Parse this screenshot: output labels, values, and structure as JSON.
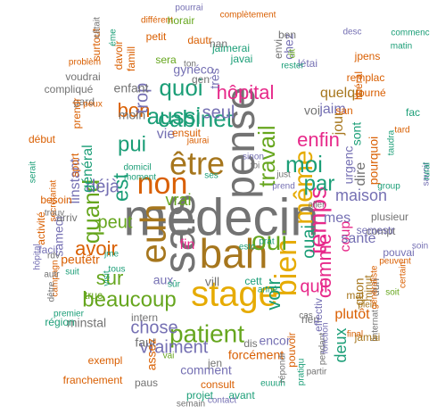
{
  "palette": {
    "grey": "#737373",
    "orange": "#d95f02",
    "olive": "#66a61e",
    "teal": "#1b9e77",
    "purple": "#7570b3",
    "pink": "#e7298a",
    "mustard": "#e6ab02",
    "brown": "#a6761d"
  },
  "words": [
    {
      "text": "médecin",
      "c": "grey"
    },
    {
      "text": "sais",
      "c": "grey"
    },
    {
      "text": "pense",
      "c": "grey"
    },
    {
      "text": "bah",
      "c": "brown"
    },
    {
      "text": "euh",
      "c": "brown"
    },
    {
      "text": "être",
      "c": "brown"
    },
    {
      "text": "non",
      "c": "orange"
    },
    {
      "text": "stage",
      "c": "mustard"
    },
    {
      "text": "temps",
      "c": "pink"
    },
    {
      "text": "bien",
      "c": "mustard"
    },
    {
      "text": "même",
      "c": "mustard"
    },
    {
      "text": "cabinet",
      "c": "teal"
    },
    {
      "text": "patient",
      "c": "olive"
    },
    {
      "text": "travail",
      "c": "olive"
    },
    {
      "text": "aussi",
      "c": "teal"
    },
    {
      "text": "quand",
      "c": "olive"
    },
    {
      "text": "moi",
      "c": "teal"
    },
    {
      "text": "par",
      "c": "teal"
    },
    {
      "text": "quoi",
      "c": "teal"
    },
    {
      "text": "pui",
      "c": "teal"
    },
    {
      "text": "est",
      "c": "teal"
    },
    {
      "text": "oui",
      "c": "olive"
    },
    {
      "text": "beaucoup",
      "c": "olive"
    },
    {
      "text": "avoir",
      "c": "orange"
    },
    {
      "text": "peut",
      "c": "olive"
    },
    {
      "text": "sur",
      "c": "olive"
    },
    {
      "text": "voir",
      "c": "teal"
    },
    {
      "text": "vraiment",
      "c": "purple"
    },
    {
      "text": "chose",
      "c": "purple"
    },
    {
      "text": "hôpital",
      "c": "pink"
    },
    {
      "text": "enfin",
      "c": "pink"
    },
    {
      "text": "comme",
      "c": "pink"
    },
    {
      "text": "quil",
      "c": "pink"
    },
    {
      "text": "plutôt",
      "c": "orange"
    },
    {
      "text": "bon",
      "c": "orange"
    },
    {
      "text": "trop",
      "c": "purple"
    },
    {
      "text": "seul",
      "c": "purple"
    },
    {
      "text": "déjà",
      "c": "purple"
    },
    {
      "text": "vrai",
      "c": "olive"
    },
    {
      "text": "mes",
      "c": "purple"
    },
    {
      "text": "maison",
      "c": "purple"
    },
    {
      "text": "fin",
      "c": "pink"
    },
    {
      "text": "ouai",
      "c": "teal"
    },
    {
      "text": "coup",
      "c": "pink"
    },
    {
      "text": "deux",
      "c": "teal"
    },
    {
      "text": "santé",
      "c": "purple"
    },
    {
      "text": "dire",
      "c": "grey"
    },
    {
      "text": "jour",
      "c": "brown"
    },
    {
      "text": "quelqu",
      "c": "brown"
    },
    {
      "text": "jaim",
      "c": "purple"
    },
    {
      "text": "sont",
      "c": "teal"
    },
    {
      "text": "urgenc",
      "c": "purple"
    },
    {
      "text": "pourquoi",
      "c": "orange"
    },
    {
      "text": "vie",
      "c": "purple"
    },
    {
      "text": "moin",
      "c": "grey"
    },
    {
      "text": "enfant",
      "c": "grey"
    },
    {
      "text": "gynéco",
      "c": "purple"
    },
    {
      "text": "très",
      "c": "purple"
    },
    {
      "text": "voi",
      "c": "grey"
    },
    {
      "text": "remplac",
      "c": "orange"
    },
    {
      "text": "journé",
      "c": "orange"
    },
    {
      "text": "général",
      "c": "teal"
    },
    {
      "text": "linstant",
      "c": "purple"
    },
    {
      "text": "samedi",
      "c": "purple"
    },
    {
      "text": "peutêtr",
      "c": "orange"
    },
    {
      "text": "minstal",
      "c": "grey"
    },
    {
      "text": "faut",
      "c": "grey"
    },
    {
      "text": "assez",
      "c": "orange"
    },
    {
      "text": "comment",
      "c": "purple"
    },
    {
      "text": "encor",
      "c": "purple"
    },
    {
      "text": "forcément",
      "c": "orange"
    },
    {
      "text": "consult",
      "c": "orange"
    },
    {
      "text": "projet",
      "c": "teal"
    },
    {
      "text": "avant",
      "c": "teal"
    },
    {
      "text": "exempl",
      "c": "orange"
    },
    {
      "text": "truc",
      "c": "olive"
    },
    {
      "text": "intern",
      "c": "grey"
    },
    {
      "text": "aux",
      "c": "purple"
    },
    {
      "text": "vill",
      "c": "grey"
    },
    {
      "text": "dis",
      "c": "grey"
    },
    {
      "text": "jen",
      "c": "grey"
    },
    {
      "text": "pouvoir",
      "c": "orange"
    },
    {
      "text": "quon",
      "c": "brown"
    },
    {
      "text": "mal",
      "c": "brown"
    },
    {
      "text": "minut",
      "c": "brown"
    },
    {
      "text": "compt",
      "c": "grey"
    },
    {
      "text": "semestr",
      "c": "purple"
    },
    {
      "text": "plusieur",
      "c": "grey"
    },
    {
      "text": "aller",
      "c": "grey"
    },
    {
      "text": "dun",
      "c": "grey"
    },
    {
      "text": "rien",
      "c": "grey"
    },
    {
      "text": "san",
      "c": "orange"
    },
    {
      "text": "sera",
      "c": "olive"
    },
    {
      "text": "jaimerai",
      "c": "teal"
    },
    {
      "text": "javai",
      "c": "teal"
    },
    {
      "text": "nan",
      "c": "grey"
    },
    {
      "text": "chez",
      "c": "purple"
    },
    {
      "text": "létai",
      "c": "purple"
    },
    {
      "text": "jpens",
      "c": "orange"
    },
    {
      "text": "libéral",
      "c": "orange"
    },
    {
      "text": "matin",
      "c": "teal"
    },
    {
      "text": "commenc",
      "c": "teal"
    },
    {
      "text": "desc",
      "c": "purple"
    },
    {
      "text": "complètement",
      "c": "orange"
    },
    {
      "text": "pourrai",
      "c": "purple"
    },
    {
      "text": "différent",
      "c": "orange"
    },
    {
      "text": "horair",
      "c": "olive"
    },
    {
      "text": "petit",
      "c": "orange"
    },
    {
      "text": "famill",
      "c": "orange"
    },
    {
      "text": "dautr",
      "c": "orange"
    },
    {
      "text": "davoir",
      "c": "orange"
    },
    {
      "text": "surtout",
      "c": "orange"
    },
    {
      "text": "problèm",
      "c": "orange"
    },
    {
      "text": "voudrai",
      "c": "grey"
    },
    {
      "text": "compliqué",
      "c": "grey"
    },
    {
      "text": "gard",
      "c": "grey"
    },
    {
      "text": "peux",
      "c": "orange"
    },
    {
      "text": "prendr",
      "c": "orange"
    },
    {
      "text": "début",
      "c": "orange"
    },
    {
      "text": "serait",
      "c": "teal"
    },
    {
      "text": "secrétariat",
      "c": "orange"
    },
    {
      "text": "sport",
      "c": "orange"
    },
    {
      "text": "besoin",
      "c": "orange"
    },
    {
      "text": "arriv",
      "c": "grey"
    },
    {
      "text": "trouv",
      "c": "grey"
    },
    {
      "text": "activité",
      "c": "orange"
    },
    {
      "text": "facil",
      "c": "purple"
    },
    {
      "text": "hôpital",
      "c": "purple"
    },
    {
      "text": "campagn",
      "c": "orange"
    },
    {
      "text": "région",
      "c": "teal"
    },
    {
      "text": "premier",
      "c": "teal"
    },
    {
      "text": "franchement",
      "c": "orange"
    },
    {
      "text": "paus",
      "c": "grey"
    },
    {
      "text": "semain",
      "c": "grey"
    },
    {
      "text": "contact",
      "c": "purple"
    },
    {
      "text": "euuuh",
      "c": "teal"
    },
    {
      "text": "répondr",
      "c": "grey"
    },
    {
      "text": "pratiqu",
      "c": "teal"
    },
    {
      "text": "partir",
      "c": "grey"
    },
    {
      "text": "final",
      "c": "orange"
    },
    {
      "text": "linternat",
      "c": "grey"
    },
    {
      "text": "pendant",
      "c": "grey"
    },
    {
      "text": "fonction",
      "c": "purple"
    },
    {
      "text": "effectiv",
      "c": "purple"
    },
    {
      "text": "jamai",
      "c": "brown"
    },
    {
      "text": "plein",
      "c": "brown"
    },
    {
      "text": "soit",
      "c": "olive"
    },
    {
      "text": "certain",
      "c": "orange"
    },
    {
      "text": "peuvent",
      "c": "orange"
    },
    {
      "text": "pouvai",
      "c": "purple"
    },
    {
      "text": "soin",
      "c": "purple"
    },
    {
      "text": "group",
      "c": "teal"
    },
    {
      "text": "généraliste",
      "c": "orange"
    },
    {
      "text": "savoir",
      "c": "purple"
    },
    {
      "text": "rural",
      "c": "teal"
    },
    {
      "text": "fac",
      "c": "teal"
    },
    {
      "text": "tard",
      "c": "orange"
    },
    {
      "text": "taudra",
      "c": "teal"
    },
    {
      "text": "moment",
      "c": "teal"
    },
    {
      "text": "domicil",
      "c": "teal"
    },
    {
      "text": "ensuit",
      "c": "orange"
    },
    {
      "text": "jaurai",
      "c": "orange"
    },
    {
      "text": "gen",
      "c": "grey"
    },
    {
      "text": "ton",
      "c": "grey"
    },
    {
      "text": "envi",
      "c": "grey"
    },
    {
      "text": "ben",
      "c": "grey"
    },
    {
      "text": "dit",
      "c": "olive"
    },
    {
      "text": "rester",
      "c": "teal"
    },
    {
      "text": "jme",
      "c": "teal"
    },
    {
      "text": "tous",
      "c": "teal"
    },
    {
      "text": "visit",
      "c": "teal"
    },
    {
      "text": "suit",
      "c": "teal"
    },
    {
      "text": "rdv",
      "c": "grey"
    },
    {
      "text": "autr",
      "c": "grey"
    },
    {
      "text": "dêtre",
      "c": "grey"
    },
    {
      "text": "câtait",
      "c": "grey"
    },
    {
      "text": "éme",
      "c": "teal"
    },
    {
      "text": "ses",
      "c": "teal"
    },
    {
      "text": "sûr",
      "c": "teal"
    },
    {
      "text": "estc",
      "c": "teal"
    },
    {
      "text": "prat",
      "c": "teal"
    },
    {
      "text": "anné",
      "c": "teal"
    },
    {
      "text": "cett",
      "c": "teal"
    },
    {
      "text": "just",
      "c": "grey"
    },
    {
      "text": "prend",
      "c": "purple"
    },
    {
      "text": "vai",
      "c": "olive"
    },
    {
      "text": "cas",
      "c": "grey"
    },
    {
      "text": "sinon",
      "c": "purple"
    },
    {
      "text": "foi",
      "c": "grey"
    },
    {
      "text": "zone",
      "c": "teal"
    },
    {
      "text": "dur",
      "c": "teal"
    },
    {
      "text": "fair",
      "c": "olive"
    },
    {
      "text": "ça",
      "c": "olive"
    }
  ]
}
